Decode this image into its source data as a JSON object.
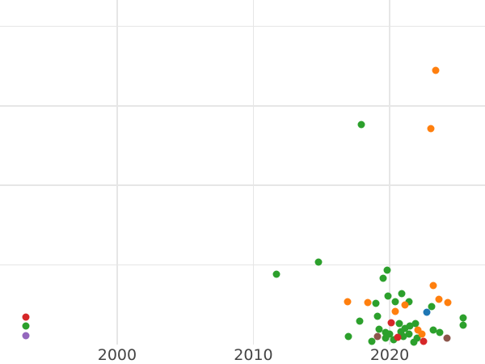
{
  "chart_data": {
    "type": "scatter",
    "title": "",
    "xlabel": "",
    "ylabel": "",
    "legend_position": "none",
    "grid": true,
    "marker_diameter_px": 9,
    "x_axis": {
      "range": [
        1991.4,
        2027.0
      ],
      "ticks": [
        {
          "value": 2000,
          "label": "2000"
        },
        {
          "value": 2010,
          "label": "2010"
        },
        {
          "value": 2020,
          "label": "2020"
        }
      ]
    },
    "y_axis": {
      "range": [
        0,
        4.33
      ],
      "gridline_values": [
        1,
        2,
        3,
        4
      ],
      "ticks": []
    },
    "series": [
      {
        "name": "green",
        "color": "#2ca02c",
        "points": [
          [
            1993.3,
            0.23
          ],
          [
            2011.7,
            0.88
          ],
          [
            2014.8,
            1.04
          ],
          [
            2017.9,
            2.76
          ],
          [
            2019.8,
            0.94
          ],
          [
            2019.5,
            0.83
          ],
          [
            2019.9,
            0.61
          ],
          [
            2020.9,
            0.64
          ],
          [
            2019.0,
            0.52
          ],
          [
            2020.4,
            0.54
          ],
          [
            2021.4,
            0.54
          ],
          [
            2023.1,
            0.48
          ],
          [
            2017.8,
            0.29
          ],
          [
            2019.1,
            0.36
          ],
          [
            2020.7,
            0.26
          ],
          [
            2021.9,
            0.26
          ],
          [
            2025.4,
            0.34
          ],
          [
            2025.4,
            0.24
          ],
          [
            2017.0,
            0.1
          ],
          [
            2019.2,
            0.19
          ],
          [
            2019.7,
            0.15
          ],
          [
            2018.7,
            0.04
          ],
          [
            2019.7,
            0.08
          ],
          [
            2020.0,
            0.13
          ],
          [
            2020.3,
            0.06
          ],
          [
            2020.8,
            0.16
          ],
          [
            2021.1,
            0.2
          ],
          [
            2021.5,
            0.23
          ],
          [
            2021.4,
            0.13
          ],
          [
            2021.0,
            0.1
          ],
          [
            2022.0,
            0.08
          ],
          [
            2021.8,
            0.03
          ],
          [
            2023.2,
            0.18
          ],
          [
            2023.7,
            0.15
          ]
        ]
      },
      {
        "name": "orange",
        "color": "#ff7f0e",
        "points": [
          [
            2023.4,
            3.45
          ],
          [
            2023.0,
            2.71
          ],
          [
            2023.2,
            0.74
          ],
          [
            2016.9,
            0.54
          ],
          [
            2018.4,
            0.53
          ],
          [
            2020.4,
            0.42
          ],
          [
            2021.1,
            0.5
          ],
          [
            2023.6,
            0.57
          ],
          [
            2024.3,
            0.53
          ],
          [
            2022.1,
            0.18
          ],
          [
            2022.4,
            0.13
          ]
        ]
      },
      {
        "name": "red",
        "color": "#d62728",
        "points": [
          [
            1993.3,
            0.35
          ],
          [
            2020.1,
            0.27
          ],
          [
            2020.6,
            0.09
          ],
          [
            2022.5,
            0.04
          ]
        ]
      },
      {
        "name": "blue",
        "color": "#1f77b4",
        "points": [
          [
            2022.7,
            0.41
          ]
        ]
      },
      {
        "name": "purple",
        "color": "#9467bd",
        "points": [
          [
            1993.3,
            0.11
          ]
        ]
      },
      {
        "name": "brown",
        "color": "#8c564b",
        "points": [
          [
            2019.1,
            0.1
          ],
          [
            2024.2,
            0.08
          ]
        ]
      }
    ]
  },
  "style": {
    "background_color": "#ffffff",
    "gridline_color": "#e6e6e6",
    "tick_label_color": "#444444"
  }
}
